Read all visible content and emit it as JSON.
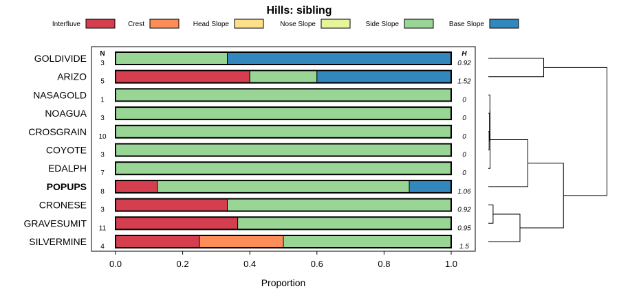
{
  "chart_data": {
    "type": "bar",
    "orientation": "horizontal",
    "stacked": true,
    "title": "Hills: sibling",
    "xlabel": "Proportion",
    "xlim": [
      0,
      1
    ],
    "xticks": [
      "0.0",
      "0.2",
      "0.4",
      "0.6",
      "0.8",
      "1.0"
    ],
    "xtick_values": [
      0,
      0.2,
      0.4,
      0.6,
      0.8,
      1.0
    ],
    "n_header": "N",
    "h_header": "H",
    "legend": [
      {
        "label": "Interfluve",
        "color": "#D53E4F"
      },
      {
        "label": "Crest",
        "color": "#FC8D59"
      },
      {
        "label": "Head Slope",
        "color": "#FEE08B"
      },
      {
        "label": "Nose Slope",
        "color": "#E6F598"
      },
      {
        "label": "Side Slope",
        "color": "#99D594"
      },
      {
        "label": "Base Slope",
        "color": "#3288BD"
      }
    ],
    "rows": [
      {
        "label": "GOLDIVIDE",
        "n": "3",
        "h": "0.92",
        "bold": false,
        "values": [
          0,
          0,
          0,
          0,
          0.333,
          0.667
        ]
      },
      {
        "label": "ARIZO",
        "n": "5",
        "h": "1.52",
        "bold": false,
        "values": [
          0.4,
          0,
          0,
          0,
          0.2,
          0.4
        ]
      },
      {
        "label": "NASAGOLD",
        "n": "1",
        "h": "0",
        "bold": false,
        "values": [
          0,
          0,
          0,
          0,
          1,
          0
        ]
      },
      {
        "label": "NOAGUA",
        "n": "3",
        "h": "0",
        "bold": false,
        "values": [
          0,
          0,
          0,
          0,
          1,
          0
        ]
      },
      {
        "label": "CROSGRAIN",
        "n": "10",
        "h": "0",
        "bold": false,
        "values": [
          0,
          0,
          0,
          0,
          1,
          0
        ]
      },
      {
        "label": "COYOTE",
        "n": "3",
        "h": "0",
        "bold": false,
        "values": [
          0,
          0,
          0,
          0,
          1,
          0
        ]
      },
      {
        "label": "EDALPH",
        "n": "7",
        "h": "0",
        "bold": false,
        "values": [
          0,
          0,
          0,
          0,
          1,
          0
        ]
      },
      {
        "label": "POPUPS",
        "n": "8",
        "h": "1.06",
        "bold": true,
        "values": [
          0.125,
          0,
          0,
          0,
          0.75,
          0.125
        ]
      },
      {
        "label": "CRONESE",
        "n": "3",
        "h": "0.92",
        "bold": false,
        "values": [
          0.333,
          0,
          0,
          0,
          0.667,
          0
        ]
      },
      {
        "label": "GRAVESUMIT",
        "n": "11",
        "h": "0.95",
        "bold": false,
        "values": [
          0.364,
          0,
          0,
          0,
          0.636,
          0
        ]
      },
      {
        "label": "SILVERMINE",
        "n": "4",
        "h": "1.5",
        "bold": false,
        "values": [
          0.25,
          0.25,
          0,
          0,
          0.5,
          0
        ]
      }
    ],
    "dendrogram": {
      "leaves": [
        "GOLDIVIDE",
        "ARIZO",
        "NASAGOLD",
        "NOAGUA",
        "CROSGRAIN",
        "COYOTE",
        "EDALPH",
        "POPUPS",
        "CRONESE",
        "GRAVESUMIT",
        "SILVERMINE"
      ],
      "merges": [
        {
          "left": "CROSGRAIN",
          "right": "COYOTE",
          "height": 0.01
        },
        {
          "left": "NOAGUA",
          "right": "m0",
          "height": 0.015
        },
        {
          "left": "NASAGOLD",
          "right": "m1",
          "height": 0.02
        },
        {
          "left": "m2",
          "right": "EDALPH",
          "height": 0.022
        },
        {
          "left": "CRONESE",
          "right": "GRAVESUMIT",
          "height": 0.06
        },
        {
          "left": "GOLDIVIDE",
          "right": "ARIZO",
          "height": 0.7
        },
        {
          "left": "m3",
          "right": "POPUPS",
          "height": 0.5
        },
        {
          "left": "m4",
          "right": "SILVERMINE",
          "height": 0.4
        },
        {
          "left": "m6",
          "right": "m7",
          "height": 0.95
        },
        {
          "left": "m5",
          "right": "m8",
          "height": 1.5
        }
      ]
    }
  }
}
